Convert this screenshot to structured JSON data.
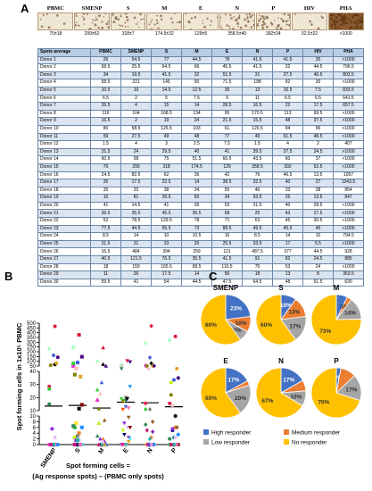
{
  "panels": {
    "a": "A",
    "b": "B",
    "c": "C"
  },
  "wells": {
    "labels": [
      "PBMC",
      "SMENP",
      "S",
      "M",
      "E",
      "N",
      "P",
      "HIV",
      "PHA"
    ],
    "values": [
      "70±18",
      "299±62",
      "318±7",
      "174.5±32",
      "129±8",
      "358.5±40",
      "392±24",
      "52.5±22",
      ">1000"
    ]
  },
  "table": {
    "header": [
      "Spots average",
      "PBMC",
      "SMENP",
      "S",
      "M",
      "E",
      "N",
      "P",
      "HIV",
      "PHA"
    ],
    "rows": [
      [
        "Donor 1",
        "26",
        "54.5",
        "77",
        "44.5",
        "78",
        "41.5",
        "41.5",
        "35",
        ">1000"
      ],
      [
        "Donor 2",
        "58.5",
        "25.5",
        "64.5",
        "66",
        "45.5",
        "41.5",
        "32",
        "44.5",
        "799.5"
      ],
      [
        "Donor 3",
        "34",
        "19.5",
        "41.5",
        "32",
        "51.5",
        "31",
        "27.5",
        "46.5",
        "803.5"
      ],
      [
        "Donor 4",
        "58.5",
        "221",
        "145",
        "90",
        "71.5",
        "198",
        "92",
        "30",
        ">1000"
      ],
      [
        "Donor 5",
        "10.5",
        "10",
        "14.5",
        "12.5",
        "30",
        "13",
        "16.5",
        "7.5",
        "833.5"
      ],
      [
        "Donor 6",
        "6.5",
        "2",
        "5",
        "7.5",
        "9",
        "11",
        "6.5",
        "6.5",
        "641.5"
      ],
      [
        "Donor 7",
        "26.5",
        "4",
        "15",
        "14",
        "28.5",
        "16.5",
        "22",
        "17.5",
        "657.5"
      ],
      [
        "Donor 8",
        "116",
        "104",
        "168.5",
        "134",
        "95",
        "170.5",
        "113",
        "99.5",
        ">1000"
      ],
      [
        "Donor 9",
        "16.5",
        "2",
        "19",
        "24",
        "21.5",
        "15.5",
        "48",
        "37.5",
        ">1000"
      ],
      [
        "Donor 10",
        "80",
        "58.5",
        "126.5",
        "103",
        "61",
        "120.5",
        "94",
        "96",
        ">1000"
      ],
      [
        "Donor 11",
        "59",
        "27.5",
        "49",
        "48",
        "77",
        "49",
        "61.5",
        "48.5",
        ">1000"
      ],
      [
        "Donor 12",
        "1.5",
        "4",
        "3",
        "2.5",
        "7.5",
        "1.5",
        "4",
        "2",
        "407"
      ],
      [
        "Donor 13",
        "31.5",
        "24",
        "29.5",
        "40",
        "41",
        "39.5",
        "37.5",
        "24.5",
        ">1000"
      ],
      [
        "Donor 14",
        "60.5",
        "58",
        "75",
        "51.5",
        "66.5",
        "43.5",
        "60",
        "37",
        ">1000"
      ],
      [
        "Donor 15",
        "70",
        "299",
        "318",
        "174.5",
        "129",
        "358.5",
        "392",
        "52.5",
        ">1000"
      ],
      [
        "Donor 16",
        "24.5",
        "82.5",
        "62",
        "36",
        "42",
        "76",
        "46.5",
        "13.5",
        "1057"
      ],
      [
        "Donor 17",
        "35",
        "17.5",
        "22.5",
        "14",
        "38.5",
        "32.5",
        "40",
        "27",
        "1043.5"
      ],
      [
        "Donor 18",
        "35",
        "20",
        "38",
        "34",
        "55",
        "46",
        "33",
        "38",
        "854"
      ],
      [
        "Donor 19",
        "15",
        "81",
        "26.5",
        "83",
        "34",
        "93.5",
        "25",
        "13.5",
        "847"
      ],
      [
        "Donor 20",
        "41",
        "14.5",
        "41",
        "26",
        "53",
        "31.5",
        "40",
        "28.5",
        ">1000"
      ],
      [
        "Donor 21",
        "39.5",
        "35.5",
        "45.5",
        "36.5",
        "68",
        "25",
        "43",
        "27.5",
        ">1000"
      ],
      [
        "Donor 22",
        "52",
        "78.5",
        "129.5",
        "78",
        "71",
        "63",
        "45",
        "30.5",
        ">1000"
      ],
      [
        "Donor 23",
        "77.5",
        "44.5",
        "55.5",
        "73",
        "88.5",
        "49.5",
        "45.5",
        "46",
        ">1000"
      ],
      [
        "Donor 24",
        "8.5",
        "14",
        "10",
        "10.5",
        "16",
        "8.5",
        "14",
        "10",
        "794.5"
      ],
      [
        "Donor 25",
        "31.5",
        "31",
        "33",
        "20",
        "25.5",
        "33.5",
        "17",
        "5.5",
        ">1000"
      ],
      [
        "Donor 26",
        "16.5",
        "484",
        "394",
        "259",
        "121",
        "487.5",
        "377",
        "44.5",
        "928"
      ],
      [
        "Donor 27",
        "40.5",
        "121.5",
        "76.5",
        "35.5",
        "41.5",
        "91",
        "82",
        "24.5",
        "885"
      ],
      [
        "Donor 28",
        "18",
        "159",
        "165.5",
        "68.5",
        "110.5",
        "70",
        "53",
        "24",
        ">1000"
      ],
      [
        "Donor 29",
        "11",
        "26",
        "17.5",
        "14",
        "56",
        "18",
        "13",
        "8",
        "363.5"
      ],
      [
        "Donor 30",
        "59.5",
        "41",
        "54",
        "44.5",
        "47.5",
        "64.5",
        "48",
        "51.5",
        "630"
      ]
    ]
  },
  "panel_b": {
    "ylabel": "Spot forming cells in 1x10⁵ PBMC",
    "caption_line1": "Spot forming cells =",
    "caption_line2": "(Ag response spots) – (PBMC only spots)"
  },
  "chart_data": [
    {
      "type": "scatter",
      "title": "",
      "xlabel": "",
      "ylabel": "Spot forming cells in 1x10⁵ PBMC",
      "categories": [
        "SMENP",
        "S",
        "M",
        "E",
        "N",
        "P"
      ],
      "y_ticks_upper": [
        50,
        100,
        150,
        200,
        250,
        300,
        350,
        400,
        450,
        500
      ],
      "y_ticks_mid": [
        10,
        20,
        30,
        40
      ],
      "y_ticks_lower": [
        0,
        2,
        4,
        6,
        8,
        10
      ],
      "medians": [
        13.5,
        14,
        12,
        16.5,
        16,
        13
      ]
    },
    {
      "type": "pie",
      "legend": [
        "High responder",
        "Medium responder",
        "Low responder",
        "No responder"
      ],
      "colors": [
        "#4472c4",
        "#ed7d31",
        "#a5a5a5",
        "#ffc000"
      ],
      "pies": [
        {
          "name": "SMENP",
          "values": [
            23,
            10,
            7,
            60
          ],
          "labels": [
            "23%",
            "10%",
            "7%",
            "60%"
          ]
        },
        {
          "name": "S",
          "values": [
            10,
            13,
            17,
            60
          ],
          "labels": [
            "10%",
            "13%",
            "17%",
            "60%"
          ]
        },
        {
          "name": "M",
          "values": [
            7,
            3,
            14,
            73
          ],
          "labels": [
            "",
            "3%",
            "14%",
            "73%"
          ]
        },
        {
          "name": "E",
          "values": [
            17,
            3,
            20,
            60
          ],
          "labels": [
            "17%",
            "",
            "20%",
            "60%"
          ]
        },
        {
          "name": "N",
          "values": [
            17,
            7,
            10,
            67
          ],
          "labels": [
            "17%",
            "",
            "10%",
            "67%"
          ]
        },
        {
          "name": "P",
          "values": [
            3,
            10,
            17,
            70
          ],
          "labels": [
            "3%",
            "",
            "17%",
            "70%"
          ]
        }
      ]
    }
  ]
}
